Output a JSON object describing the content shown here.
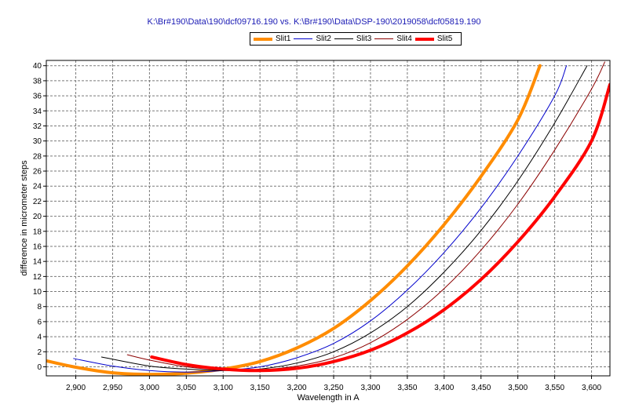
{
  "chart_data": {
    "type": "line",
    "title": "K:\\Br#190\\Data\\190\\dcf09716.190 vs. K:\\Br#190\\Data\\DSP-190\\2019058\\dcf05819.190",
    "xlabel": "Wavelength in A",
    "ylabel": "difference in micrometer steps",
    "xlim": [
      2860,
      3625
    ],
    "ylim": [
      -1.2,
      40.7
    ],
    "grid": true,
    "legend": "top-center",
    "x_ticks": [
      "2,900",
      "2,950",
      "3,000",
      "3,050",
      "3,100",
      "3,150",
      "3,200",
      "3,250",
      "3,300",
      "3,350",
      "3,400",
      "3,450",
      "3,500",
      "3,550",
      "3,600"
    ],
    "y_ticks": [
      "0",
      "2",
      "4",
      "6",
      "8",
      "10",
      "12",
      "14",
      "16",
      "18",
      "20",
      "22",
      "24",
      "26",
      "28",
      "30",
      "32",
      "34",
      "36",
      "38",
      "40"
    ],
    "series": [
      {
        "name": "Slit1",
        "color": "#ff8c00",
        "width": 4,
        "points": [
          [
            2860,
            0.8
          ],
          [
            2900,
            -0.05
          ],
          [
            2950,
            -0.8
          ],
          [
            3000,
            -1.0
          ],
          [
            3050,
            -0.85
          ],
          [
            3100,
            -0.3
          ],
          [
            3150,
            0.7
          ],
          [
            3200,
            2.5
          ],
          [
            3250,
            5.1
          ],
          [
            3300,
            8.8
          ],
          [
            3350,
            13.4
          ],
          [
            3400,
            18.9
          ],
          [
            3450,
            25.3
          ],
          [
            3500,
            32.8
          ],
          [
            3530,
            40.0
          ]
        ]
      },
      {
        "name": "Slit2",
        "color": "#0000cc",
        "width": 1,
        "points": [
          [
            2897,
            1.1
          ],
          [
            2950,
            0.1
          ],
          [
            3000,
            -0.5
          ],
          [
            3050,
            -0.7
          ],
          [
            3100,
            -0.5
          ],
          [
            3150,
            0.0
          ],
          [
            3200,
            1.2
          ],
          [
            3250,
            3.1
          ],
          [
            3300,
            6.1
          ],
          [
            3350,
            10.2
          ],
          [
            3400,
            15.2
          ],
          [
            3450,
            21.1
          ],
          [
            3500,
            28.0
          ],
          [
            3550,
            36.0
          ],
          [
            3566,
            40.0
          ]
        ]
      },
      {
        "name": "Slit3",
        "color": "#000000",
        "width": 1,
        "points": [
          [
            2935,
            1.3
          ],
          [
            3000,
            0.1
          ],
          [
            3050,
            -0.3
          ],
          [
            3100,
            -0.5
          ],
          [
            3150,
            -0.3
          ],
          [
            3200,
            0.5
          ],
          [
            3250,
            2.0
          ],
          [
            3300,
            4.5
          ],
          [
            3350,
            8.0
          ],
          [
            3400,
            12.6
          ],
          [
            3450,
            18.1
          ],
          [
            3500,
            24.7
          ],
          [
            3550,
            32.4
          ],
          [
            3594,
            40.0
          ]
        ]
      },
      {
        "name": "Slit4",
        "color": "#8b0000",
        "width": 1,
        "points": [
          [
            2970,
            1.6
          ],
          [
            3000,
            0.9
          ],
          [
            3050,
            0.0
          ],
          [
            3100,
            -0.4
          ],
          [
            3150,
            -0.4
          ],
          [
            3200,
            0.1
          ],
          [
            3250,
            1.2
          ],
          [
            3300,
            3.2
          ],
          [
            3350,
            6.3
          ],
          [
            3400,
            10.4
          ],
          [
            3450,
            15.5
          ],
          [
            3500,
            21.6
          ],
          [
            3550,
            28.8
          ],
          [
            3600,
            36.9
          ],
          [
            3618,
            40.5
          ]
        ]
      },
      {
        "name": "Slit5",
        "color": "#ff0000",
        "width": 4,
        "points": [
          [
            3003,
            1.3
          ],
          [
            3050,
            0.3
          ],
          [
            3100,
            -0.3
          ],
          [
            3150,
            -0.5
          ],
          [
            3200,
            -0.2
          ],
          [
            3250,
            0.7
          ],
          [
            3300,
            2.2
          ],
          [
            3350,
            4.5
          ],
          [
            3400,
            7.6
          ],
          [
            3450,
            11.6
          ],
          [
            3500,
            16.6
          ],
          [
            3550,
            22.6
          ],
          [
            3600,
            30.0
          ],
          [
            3625,
            37.5
          ]
        ]
      }
    ]
  }
}
